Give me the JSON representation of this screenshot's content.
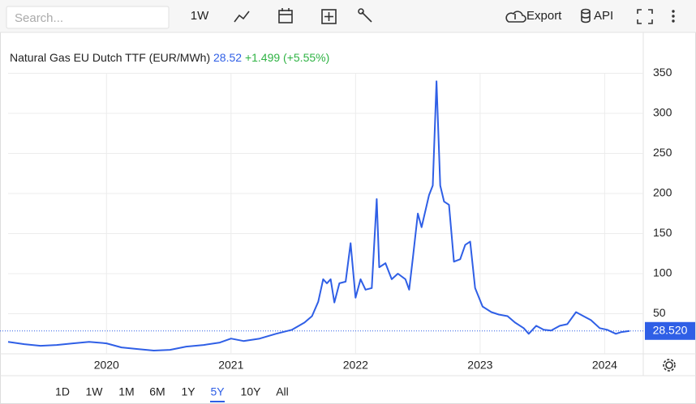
{
  "toolbar": {
    "search": "Search...",
    "interval": "1W",
    "export": "Export",
    "api": "API"
  },
  "ranges": [
    "1D",
    "1W",
    "1M",
    "6M",
    "1Y",
    "5Y",
    "10Y",
    "All"
  ],
  "chart_data": {
    "type": "line",
    "title": "Natural Gas EU Dutch TTF (EUR/MWh)",
    "price": "28.52",
    "change": "+1.499 (+5.55%)",
    "color": "#2f5fe6",
    "x": [
      2019.21,
      2019.34,
      2019.47,
      2019.6,
      2019.73,
      2019.86,
      2020.0,
      2020.12,
      2020.25,
      2020.38,
      2020.51,
      2020.64,
      2020.78,
      2020.91,
      2021.0,
      2021.1,
      2021.23,
      2021.36,
      2021.49,
      2021.59,
      2021.65,
      2021.7,
      2021.74,
      2021.77,
      2021.8,
      2021.83,
      2021.87,
      2021.92,
      2021.96,
      2022.0,
      2022.04,
      2022.08,
      2022.13,
      2022.17,
      2022.19,
      2022.24,
      2022.29,
      2022.34,
      2022.4,
      2022.43,
      2022.46,
      2022.5,
      2022.53,
      2022.59,
      2022.62,
      2022.65,
      2022.68,
      2022.71,
      2022.75,
      2022.79,
      2022.84,
      2022.88,
      2022.92,
      2022.96,
      2023.02,
      2023.09,
      2023.15,
      2023.22,
      2023.28,
      2023.35,
      2023.39,
      2023.45,
      2023.51,
      2023.57,
      2023.64,
      2023.7,
      2023.77,
      2023.83,
      2023.89,
      2023.96,
      2024.02,
      2024.09,
      2024.13,
      2024.2
    ],
    "values": [
      15,
      12,
      10,
      11,
      13,
      15,
      13,
      8,
      6,
      4,
      5,
      9,
      11,
      14,
      19,
      16,
      19,
      25,
      30,
      39,
      47,
      65,
      93,
      88,
      93,
      64,
      88,
      90,
      138,
      70,
      93,
      80,
      82,
      193,
      108,
      113,
      93,
      100,
      93,
      80,
      120,
      175,
      158,
      198,
      210,
      340,
      210,
      190,
      186,
      115,
      118,
      136,
      140,
      82,
      59,
      52,
      49,
      47,
      39,
      32,
      25,
      35,
      30,
      29,
      35,
      37,
      52,
      47,
      42,
      32,
      30,
      25,
      27,
      28.52
    ],
    "xlim": [
      2019.21,
      2024.31
    ],
    "ylim": [
      0,
      399
    ],
    "xticks": [
      2020,
      2021,
      2022,
      2023,
      2024
    ],
    "yticks": [
      50,
      100,
      150,
      200,
      250,
      300,
      350
    ],
    "grid": true,
    "last_marker": {
      "value": 28.52,
      "label": "28.520"
    }
  }
}
